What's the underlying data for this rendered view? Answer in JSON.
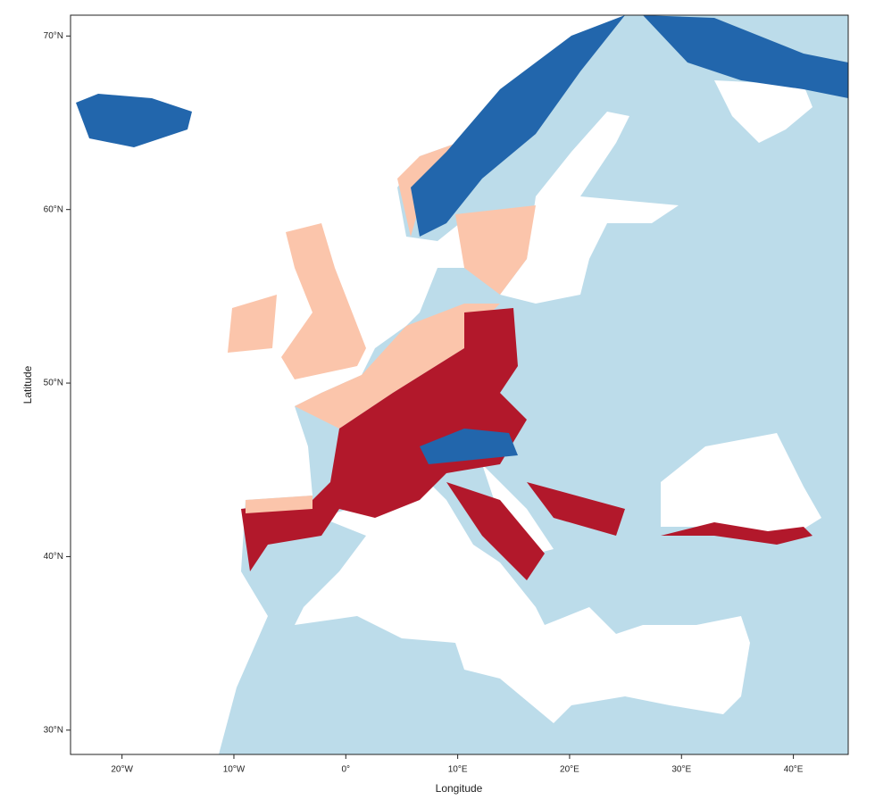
{
  "chart_data": {
    "type": "map",
    "x_label": "Longitude",
    "y_label": "Latitude",
    "xlim": [
      -24.6,
      44.9
    ],
    "ylim": [
      28.6,
      71.2
    ],
    "xticks": [
      {
        "value": -20,
        "label": "20°W"
      },
      {
        "value": -10,
        "label": "10°W"
      },
      {
        "value": 0,
        "label": "0°"
      },
      {
        "value": 10,
        "label": "10°E"
      },
      {
        "value": 20,
        "label": "20°E"
      },
      {
        "value": 30,
        "label": "30°E"
      },
      {
        "value": 40,
        "label": "40°E"
      }
    ],
    "yticks": [
      {
        "value": 30,
        "label": "30°N"
      },
      {
        "value": 40,
        "label": "40°N"
      },
      {
        "value": 50,
        "label": "50°N"
      },
      {
        "value": 60,
        "label": "60°N"
      },
      {
        "value": 70,
        "label": "70°N"
      }
    ]
  }
}
